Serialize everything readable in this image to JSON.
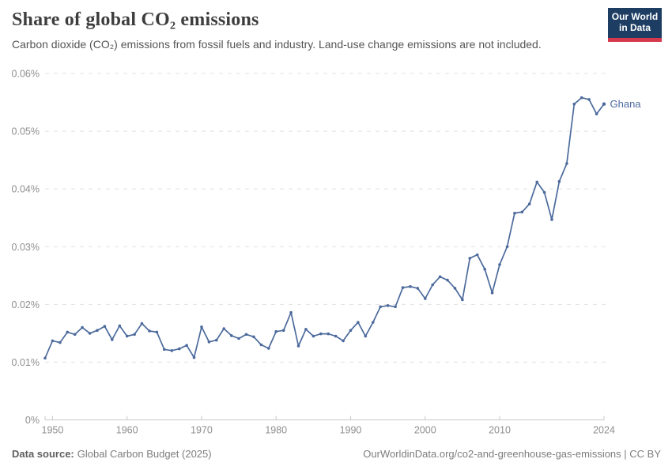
{
  "header": {
    "title": "Share of global CO₂ emissions",
    "subtitle": "Carbon dioxide (CO₂) emissions from fossil fuels and industry. Land-use change emissions are not included.",
    "logo": {
      "line1": "Our World",
      "line2": "in Data"
    }
  },
  "chart_data": {
    "type": "line",
    "title": "Share of global CO₂ emissions",
    "xlabel": "",
    "ylabel": "",
    "unit": "%",
    "xlim": [
      1949,
      2024
    ],
    "ylim": [
      0,
      0.06
    ],
    "grid": "horizontal-dashed",
    "legend_position": "end-of-line-label",
    "x_ticks": [
      {
        "value": 1950,
        "label": "1950"
      },
      {
        "value": 1960,
        "label": "1960"
      },
      {
        "value": 1970,
        "label": "1970"
      },
      {
        "value": 1980,
        "label": "1980"
      },
      {
        "value": 1990,
        "label": "1990"
      },
      {
        "value": 2000,
        "label": "2000"
      },
      {
        "value": 2010,
        "label": "2010"
      },
      {
        "value": 2024,
        "label": "2024"
      }
    ],
    "y_ticks": [
      {
        "value": 0,
        "label": "0%"
      },
      {
        "value": 0.01,
        "label": "0.01%"
      },
      {
        "value": 0.02,
        "label": "0.02%"
      },
      {
        "value": 0.03,
        "label": "0.03%"
      },
      {
        "value": 0.04,
        "label": "0.04%"
      },
      {
        "value": 0.05,
        "label": "0.05%"
      },
      {
        "value": 0.06,
        "label": "0.06%"
      }
    ],
    "series": [
      {
        "name": "Ghana",
        "color": "#4c6a9c",
        "x": [
          1949,
          1950,
          1951,
          1952,
          1953,
          1954,
          1955,
          1956,
          1957,
          1958,
          1959,
          1960,
          1961,
          1962,
          1963,
          1964,
          1965,
          1966,
          1967,
          1968,
          1969,
          1970,
          1971,
          1972,
          1973,
          1974,
          1975,
          1976,
          1977,
          1978,
          1979,
          1980,
          1981,
          1982,
          1983,
          1984,
          1985,
          1986,
          1987,
          1988,
          1989,
          1990,
          1991,
          1992,
          1993,
          1994,
          1995,
          1996,
          1997,
          1998,
          1999,
          2000,
          2001,
          2002,
          2003,
          2004,
          2005,
          2006,
          2007,
          2008,
          2009,
          2010,
          2011,
          2012,
          2013,
          2014,
          2015,
          2016,
          2017,
          2018,
          2019,
          2020,
          2021,
          2022,
          2023,
          2024
        ],
        "values": [
          0.0107,
          0.0137,
          0.0134,
          0.0152,
          0.0148,
          0.016,
          0.015,
          0.0155,
          0.0162,
          0.0139,
          0.0163,
          0.0145,
          0.0148,
          0.0167,
          0.0154,
          0.0152,
          0.0122,
          0.012,
          0.0123,
          0.0129,
          0.0108,
          0.0161,
          0.0135,
          0.0138,
          0.0158,
          0.0146,
          0.0141,
          0.0148,
          0.0144,
          0.013,
          0.0124,
          0.0153,
          0.0155,
          0.0186,
          0.0128,
          0.0157,
          0.0145,
          0.0149,
          0.0149,
          0.0145,
          0.0137,
          0.0155,
          0.0169,
          0.0145,
          0.0169,
          0.0196,
          0.0198,
          0.0196,
          0.0229,
          0.0231,
          0.0228,
          0.021,
          0.0234,
          0.0248,
          0.0242,
          0.0228,
          0.0208,
          0.028,
          0.0286,
          0.0261,
          0.022,
          0.0269,
          0.03,
          0.0358,
          0.036,
          0.0374,
          0.0412,
          0.0394,
          0.0347,
          0.0413,
          0.0444,
          0.0547,
          0.0558,
          0.0555,
          0.053,
          0.0547
        ]
      }
    ]
  },
  "footer": {
    "source_label": "Data source:",
    "source_value": "Global Carbon Budget (2025)",
    "credit": "OurWorldinData.org/co2-and-greenhouse-gas-emissions | CC BY"
  },
  "colors": {
    "series": "#4c6a9c",
    "grid": "#e0e0e0",
    "axis": "#c8c8c8",
    "tick_label": "#8f8f8f",
    "title": "#3d3d3d",
    "subtitle": "#555555",
    "footer": "#7d7d7d",
    "logo_bg": "#1d3d63",
    "logo_accent": "#d6394e"
  }
}
